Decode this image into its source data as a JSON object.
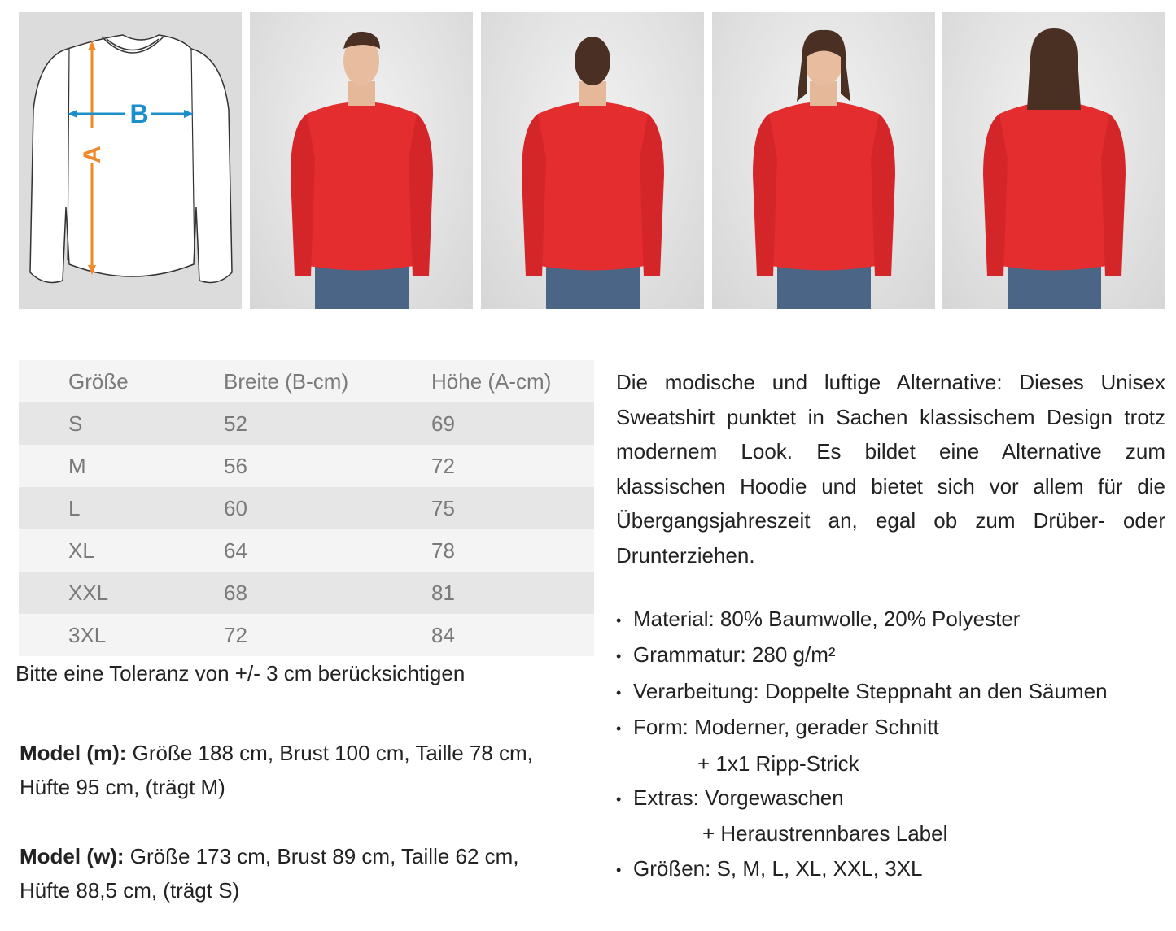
{
  "diagram": {
    "label_a": "A",
    "label_b": "B",
    "color_a": "#f0892a",
    "color_b": "#1a8fc9"
  },
  "photos": [
    {
      "view": "front",
      "model": "man",
      "sweater_color": "#e32d2f"
    },
    {
      "view": "back",
      "model": "man",
      "sweater_color": "#e32d2f"
    },
    {
      "view": "front",
      "model": "woman",
      "sweater_color": "#e32d2f"
    },
    {
      "view": "back",
      "model": "woman",
      "sweater_color": "#e32d2f"
    }
  ],
  "size_table": {
    "headers": [
      "Größe",
      "Breite (B-cm)",
      "Höhe (A-cm)"
    ],
    "rows": [
      [
        "S",
        "52",
        "69"
      ],
      [
        "M",
        "56",
        "72"
      ],
      [
        "L",
        "60",
        "75"
      ],
      [
        "XL",
        "64",
        "78"
      ],
      [
        "XXL",
        "68",
        "81"
      ],
      [
        "3XL",
        "72",
        "84"
      ]
    ]
  },
  "tolerance_note": "Bitte eine Toleranz von +/- 3 cm berücksichtigen",
  "models": [
    {
      "label": "Model (m):",
      "line1": " Größe 188 cm, Brust 100 cm, Taille 78 cm,",
      "line2": "Hüfte 95 cm, (trägt M)"
    },
    {
      "label": "Model (w):",
      "line1": " Größe 173 cm, Brust 89 cm, Taille 62 cm,",
      "line2": "Hüfte 88,5 cm, (trägt S)"
    }
  ],
  "description": "Die modische und luftige Alternative: Dieses Unisex Sweatshirt punktet in Sachen klassischem Design trotz modernem Look. Es bildet eine Alternative zum klassischen Hoodie und bietet sich vor allem für die Übergangsjahreszeit an, egal ob zum Drüber- oder Drunterziehen.",
  "features": [
    "Material: 80% Baumwolle, 20% Polyester",
    "Grammatur: 280 g/m²",
    "Verarbeitung: Doppelte Steppnaht an den Säumen",
    "Form: Moderner, gerader Schnitt",
    "+ 1x1 Ripp-Strick",
    "Extras: Vorgewaschen",
    "+ Heraustrennbares Label",
    "Größen:  S, M, L, XL, XXL, 3XL"
  ]
}
